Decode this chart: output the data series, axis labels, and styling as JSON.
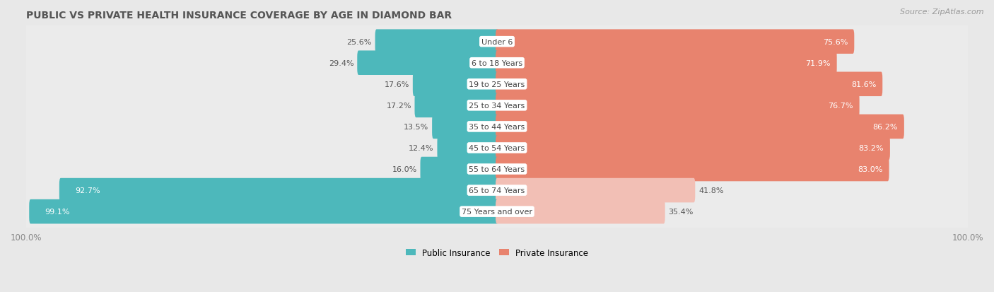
{
  "title": "PUBLIC VS PRIVATE HEALTH INSURANCE COVERAGE BY AGE IN DIAMOND BAR",
  "source": "Source: ZipAtlas.com",
  "categories": [
    "Under 6",
    "6 to 18 Years",
    "19 to 25 Years",
    "25 to 34 Years",
    "35 to 44 Years",
    "45 to 54 Years",
    "55 to 64 Years",
    "65 to 74 Years",
    "75 Years and over"
  ],
  "public_values": [
    25.6,
    29.4,
    17.6,
    17.2,
    13.5,
    12.4,
    16.0,
    92.7,
    99.1
  ],
  "private_values": [
    75.6,
    71.9,
    81.6,
    76.7,
    86.2,
    83.2,
    83.0,
    41.8,
    35.4
  ],
  "public_color": "#4db8bb",
  "private_color_high": "#e8836e",
  "private_color_low": "#f2bfb5",
  "row_bg_color": "#e8e8e8",
  "bar_bg_color": "#f5f5f5",
  "background_color": "#e8e8e8",
  "legend_public": "Public Insurance",
  "legend_private": "Private Insurance",
  "title_fontsize": 10,
  "source_fontsize": 8,
  "label_fontsize": 8,
  "category_fontsize": 8,
  "axis_label_color": "#888888",
  "title_color": "#555555",
  "pub_label_threshold": 30
}
